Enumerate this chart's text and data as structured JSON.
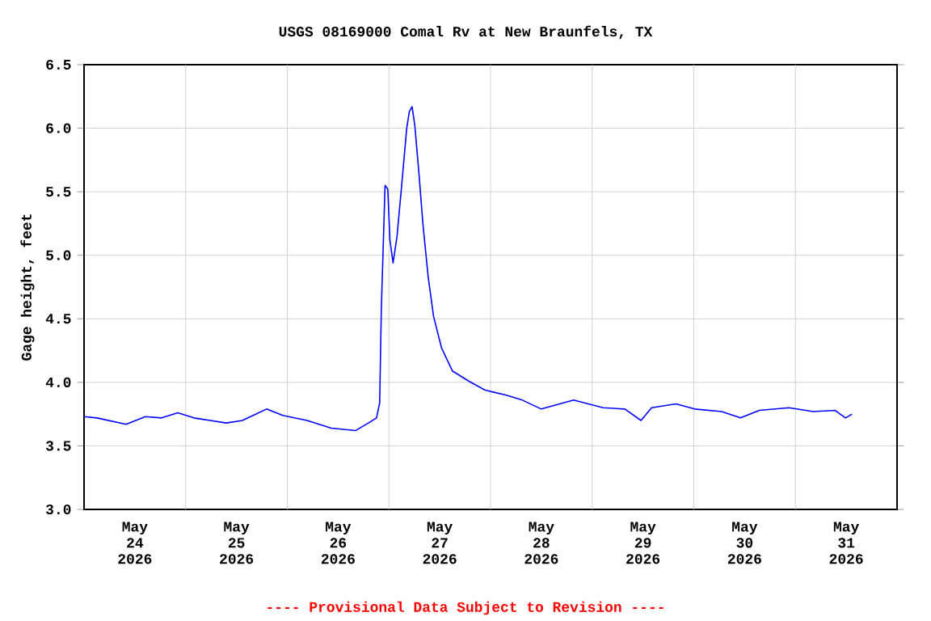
{
  "chart_data": {
    "type": "line",
    "title": "USGS 08169000 Comal Rv at New Braunfels, TX",
    "ylabel": "Gage height, feet",
    "annotations": [
      "---- Provisional Data Subject to Revision ----"
    ],
    "xlim": [
      "2026-05-24T00:00",
      "2026-06-01T00:00"
    ],
    "xticks": [
      {
        "value": "2026-05-24T12:00",
        "label": "May 24 2026"
      },
      {
        "value": "2026-05-25T12:00",
        "label": "May 25 2026"
      },
      {
        "value": "2026-05-26T12:00",
        "label": "May 26 2026"
      },
      {
        "value": "2026-05-27T12:00",
        "label": "May 27 2026"
      },
      {
        "value": "2026-05-28T12:00",
        "label": "May 28 2026"
      },
      {
        "value": "2026-05-29T12:00",
        "label": "May 29 2026"
      },
      {
        "value": "2026-05-30T12:00",
        "label": "May 30 2026"
      },
      {
        "value": "2026-05-31T12:00",
        "label": "May 31 2026"
      },
      {
        "value": "2026-05-25T00:00",
        "label": null
      },
      {
        "value": "2026-05-26T00:00",
        "label": null
      },
      {
        "value": "2026-05-27T00:00",
        "label": null
      },
      {
        "value": "2026-05-28T00:00",
        "label": null
      },
      {
        "value": "2026-05-29T00:00",
        "label": null
      },
      {
        "value": "2026-05-30T00:00",
        "label": null
      },
      {
        "value": "2026-05-31T00:00",
        "label": null
      }
    ],
    "ylim": [
      3.0,
      6.5
    ],
    "yticks": [
      {
        "value": 3.0,
        "label": "3.0"
      },
      {
        "value": 3.5,
        "label": "3.5"
      },
      {
        "value": 4.0,
        "label": "4.0"
      },
      {
        "value": 4.5,
        "label": "4.5"
      },
      {
        "value": 5.0,
        "label": "5.0"
      },
      {
        "value": 5.5,
        "label": "5.5"
      },
      {
        "value": 6.0,
        "label": "6.0"
      },
      {
        "value": 6.5,
        "label": "6.5"
      }
    ],
    "grid": true,
    "marker": "none",
    "line_style": "solid",
    "x": [
      "2026-05-24T00:00",
      "2026-05-24T03:03",
      "2026-05-24T09:55",
      "2026-05-24T14:30",
      "2026-05-24T18:19",
      "2026-05-24T22:08",
      "2026-05-25T01:57",
      "2026-05-25T09:35",
      "2026-05-25T13:24",
      "2026-05-25T19:07",
      "2026-05-25T22:56",
      "2026-05-26T04:40",
      "2026-05-26T10:23",
      "2026-05-26T16:06",
      "2026-05-26T19:09",
      "2026-05-26T21:04",
      "2026-05-26T21:49",
      "2026-05-26T22:12",
      "2026-05-26T23:05",
      "2026-05-26T23:44",
      "2026-05-27T00:14",
      "2026-05-27T00:59",
      "2026-05-27T01:55",
      "2026-05-27T02:54",
      "2026-05-27T04:12",
      "2026-05-27T04:49",
      "2026-05-27T05:28",
      "2026-05-27T06:07",
      "2026-05-27T07:06",
      "2026-05-27T08:01",
      "2026-05-27T09:16",
      "2026-05-27T10:32",
      "2026-05-27T12:26",
      "2026-05-27T14:59",
      "2026-05-27T18:49",
      "2026-05-27T22:37",
      "2026-05-27T23:46",
      "2026-05-28T03:35",
      "2026-05-28T07:31",
      "2026-05-28T11:59",
      "2026-05-28T19:37",
      "2026-05-29T02:36",
      "2026-05-29T07:43",
      "2026-05-29T11:32",
      "2026-05-29T14:02",
      "2026-05-29T19:46",
      "2026-05-30T00:14",
      "2026-05-30T06:36",
      "2026-05-30T11:02",
      "2026-05-30T15:29",
      "2026-05-30T22:28",
      "2026-05-31T04:12",
      "2026-05-31T09:19",
      "2026-05-31T11:50",
      "2026-05-31T13:22"
    ],
    "series": [
      {
        "color": "#0000ff",
        "values": [
          3.73,
          3.72,
          3.67,
          3.73,
          3.72,
          3.76,
          3.72,
          3.68,
          3.7,
          3.79,
          3.74,
          3.7,
          3.64,
          3.62,
          3.68,
          3.72,
          3.84,
          4.57,
          5.55,
          5.52,
          5.12,
          4.94,
          5.15,
          5.51,
          6.0,
          6.13,
          6.17,
          6.02,
          5.64,
          5.25,
          4.83,
          4.52,
          4.27,
          4.09,
          4.01,
          3.94,
          3.93,
          3.9,
          3.86,
          3.79,
          3.86,
          3.8,
          3.79,
          3.7,
          3.8,
          3.83,
          3.79,
          3.77,
          3.72,
          3.78,
          3.8,
          3.77,
          3.78,
          3.72,
          3.75
        ]
      }
    ]
  }
}
